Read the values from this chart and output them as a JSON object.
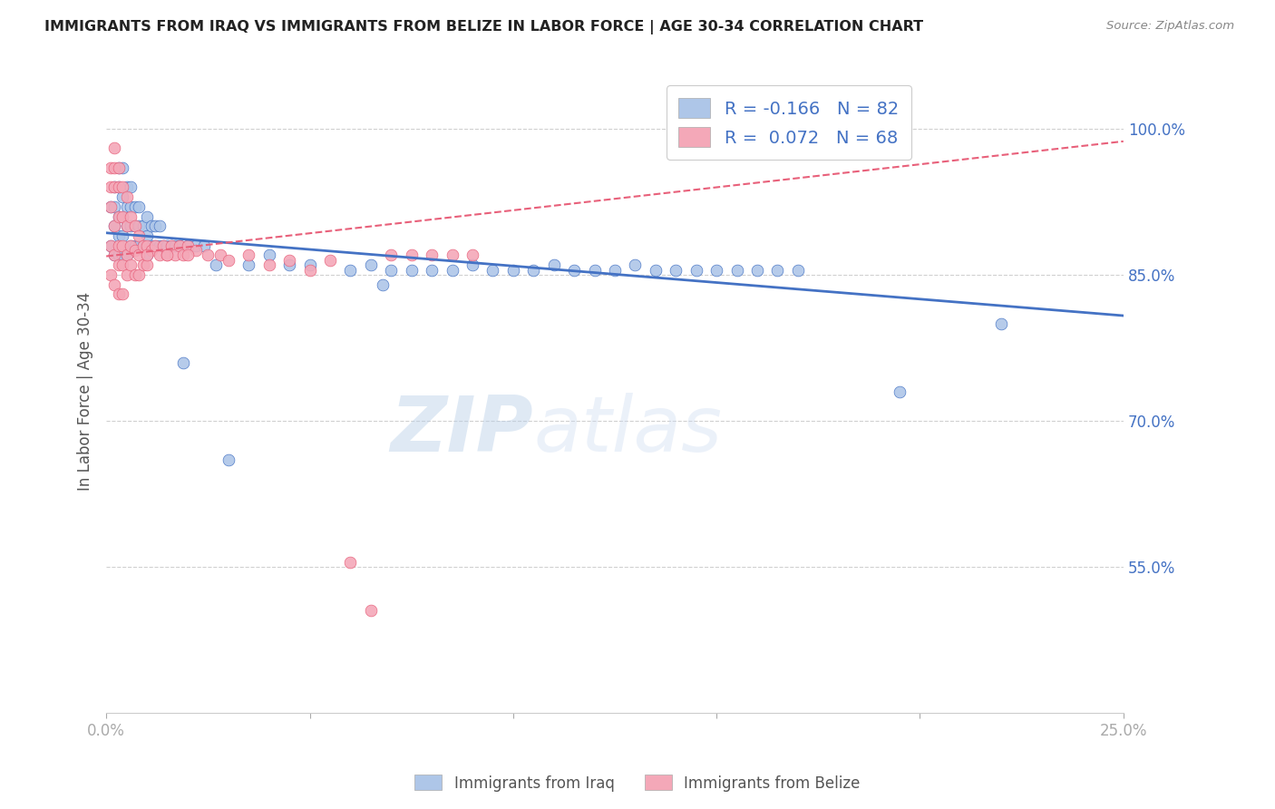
{
  "title": "IMMIGRANTS FROM IRAQ VS IMMIGRANTS FROM BELIZE IN LABOR FORCE | AGE 30-34 CORRELATION CHART",
  "source": "Source: ZipAtlas.com",
  "ylabel": "In Labor Force | Age 30-34",
  "ytick_labels": [
    "55.0%",
    "70.0%",
    "85.0%",
    "100.0%"
  ],
  "ytick_values": [
    0.55,
    0.7,
    0.85,
    1.0
  ],
  "xlim": [
    0.0,
    0.25
  ],
  "ylim": [
    0.4,
    1.06
  ],
  "legend_iraq_R": "-0.166",
  "legend_iraq_N": "82",
  "legend_belize_R": "0.072",
  "legend_belize_N": "68",
  "iraq_color": "#aec6e8",
  "belize_color": "#f4a8b8",
  "iraq_line_color": "#4472c4",
  "belize_line_color": "#e8607a",
  "grid_color": "#d0d0d0",
  "watermark_zip": "ZIP",
  "watermark_atlas": "atlas",
  "iraq_scatter_x": [
    0.001,
    0.001,
    0.002,
    0.002,
    0.002,
    0.002,
    0.003,
    0.003,
    0.003,
    0.003,
    0.003,
    0.004,
    0.004,
    0.004,
    0.004,
    0.004,
    0.005,
    0.005,
    0.005,
    0.005,
    0.006,
    0.006,
    0.006,
    0.006,
    0.007,
    0.007,
    0.007,
    0.008,
    0.008,
    0.008,
    0.009,
    0.009,
    0.01,
    0.01,
    0.01,
    0.011,
    0.011,
    0.012,
    0.012,
    0.013,
    0.013,
    0.014,
    0.015,
    0.016,
    0.017,
    0.018,
    0.019,
    0.02,
    0.022,
    0.024,
    0.027,
    0.03,
    0.035,
    0.04,
    0.045,
    0.05,
    0.06,
    0.065,
    0.068,
    0.07,
    0.075,
    0.08,
    0.085,
    0.09,
    0.095,
    0.1,
    0.105,
    0.11,
    0.115,
    0.12,
    0.125,
    0.13,
    0.135,
    0.14,
    0.145,
    0.15,
    0.155,
    0.16,
    0.165,
    0.17,
    0.195,
    0.22
  ],
  "iraq_scatter_y": [
    0.88,
    0.92,
    0.87,
    0.9,
    0.92,
    0.94,
    0.87,
    0.89,
    0.91,
    0.94,
    0.96,
    0.87,
    0.89,
    0.91,
    0.93,
    0.96,
    0.87,
    0.9,
    0.92,
    0.94,
    0.88,
    0.9,
    0.92,
    0.94,
    0.88,
    0.9,
    0.92,
    0.88,
    0.9,
    0.92,
    0.88,
    0.9,
    0.87,
    0.89,
    0.91,
    0.88,
    0.9,
    0.88,
    0.9,
    0.88,
    0.9,
    0.88,
    0.88,
    0.88,
    0.88,
    0.88,
    0.76,
    0.88,
    0.88,
    0.88,
    0.86,
    0.66,
    0.86,
    0.87,
    0.86,
    0.86,
    0.855,
    0.86,
    0.84,
    0.855,
    0.855,
    0.855,
    0.855,
    0.86,
    0.855,
    0.855,
    0.855,
    0.86,
    0.855,
    0.855,
    0.855,
    0.86,
    0.855,
    0.855,
    0.855,
    0.855,
    0.855,
    0.855,
    0.855,
    0.855,
    0.73,
    0.8
  ],
  "belize_scatter_x": [
    0.001,
    0.001,
    0.001,
    0.001,
    0.001,
    0.002,
    0.002,
    0.002,
    0.002,
    0.002,
    0.002,
    0.003,
    0.003,
    0.003,
    0.003,
    0.003,
    0.003,
    0.004,
    0.004,
    0.004,
    0.004,
    0.004,
    0.005,
    0.005,
    0.005,
    0.005,
    0.006,
    0.006,
    0.006,
    0.007,
    0.007,
    0.007,
    0.008,
    0.008,
    0.008,
    0.009,
    0.009,
    0.01,
    0.01,
    0.011,
    0.012,
    0.013,
    0.014,
    0.015,
    0.016,
    0.017,
    0.018,
    0.019,
    0.02,
    0.022,
    0.025,
    0.028,
    0.03,
    0.035,
    0.04,
    0.045,
    0.05,
    0.055,
    0.06,
    0.065,
    0.07,
    0.075,
    0.08,
    0.085,
    0.09,
    0.01,
    0.015,
    0.02
  ],
  "belize_scatter_y": [
    0.96,
    0.94,
    0.92,
    0.88,
    0.85,
    0.98,
    0.96,
    0.94,
    0.9,
    0.87,
    0.84,
    0.96,
    0.94,
    0.91,
    0.88,
    0.86,
    0.83,
    0.94,
    0.91,
    0.88,
    0.86,
    0.83,
    0.93,
    0.9,
    0.87,
    0.85,
    0.91,
    0.88,
    0.86,
    0.9,
    0.875,
    0.85,
    0.89,
    0.87,
    0.85,
    0.88,
    0.86,
    0.88,
    0.86,
    0.875,
    0.88,
    0.87,
    0.88,
    0.87,
    0.88,
    0.87,
    0.88,
    0.87,
    0.88,
    0.875,
    0.87,
    0.87,
    0.865,
    0.87,
    0.86,
    0.865,
    0.855,
    0.865,
    0.555,
    0.505,
    0.87,
    0.87,
    0.87,
    0.87,
    0.87,
    0.87,
    0.87,
    0.87
  ],
  "iraq_trend_x": [
    0.0,
    0.25
  ],
  "iraq_trend_y": [
    0.893,
    0.808
  ],
  "belize_trend_x": [
    0.0,
    0.25
  ],
  "belize_trend_y": [
    0.869,
    0.987
  ]
}
